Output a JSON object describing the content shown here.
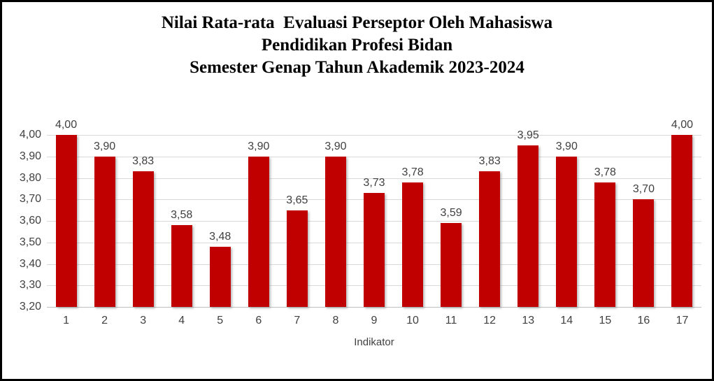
{
  "title": {
    "line1": "Nilai Rata-rata  Evaluasi Perseptor Oleh Mahasiswa",
    "line2": "Pendidikan Profesi Bidan",
    "line3": "Semester Genap Tahun Akademik 2023-2024"
  },
  "chart_data": {
    "type": "bar",
    "title": "Nilai Rata-rata Evaluasi Perseptor Oleh Mahasiswa Pendidikan Profesi Bidan Semester Genap Tahun Akademik 2023-2024",
    "categories": [
      "1",
      "2",
      "3",
      "4",
      "5",
      "6",
      "7",
      "8",
      "9",
      "10",
      "11",
      "12",
      "13",
      "14",
      "15",
      "16",
      "17"
    ],
    "values": [
      4.0,
      3.9,
      3.83,
      3.58,
      3.48,
      3.9,
      3.65,
      3.9,
      3.73,
      3.78,
      3.59,
      3.83,
      3.95,
      3.9,
      3.78,
      3.7,
      4.0
    ],
    "value_labels": [
      "4,00",
      "3,90",
      "3,83",
      "3,58",
      "3,48",
      "3,90",
      "3,65",
      "3,90",
      "3,73",
      "3,78",
      "3,59",
      "3,83",
      "3,95",
      "3,90",
      "3,78",
      "3,70",
      "4,00"
    ],
    "xlabel": "Indikator",
    "ylabel": "",
    "ylim": [
      3.2,
      4.0
    ],
    "y_tick_values": [
      3.2,
      3.3,
      3.4,
      3.5,
      3.6,
      3.7,
      3.8,
      3.9,
      4.0
    ],
    "y_tick_labels": [
      "3,20",
      "3,30",
      "3,40",
      "3,50",
      "3,60",
      "3,70",
      "3,80",
      "3,90",
      "4,00"
    ],
    "grid": true,
    "legend": false,
    "bar_color": "#C00000",
    "label_color": "#404040",
    "gridline_color": "#D9D9D9",
    "axis_line_color": "#BFBFBF"
  }
}
